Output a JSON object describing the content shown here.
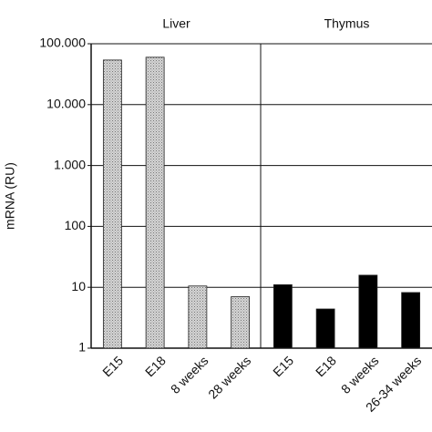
{
  "chart_data": {
    "type": "bar",
    "log_scale": true,
    "grid": true,
    "y_label": "mRNA (RU)",
    "ylim": [
      1,
      100000
    ],
    "yticks": [
      1,
      10,
      100,
      {
        "value": 1000,
        "label": "1.000"
      },
      {
        "value": 10000,
        "label": "10.000"
      },
      {
        "value": 100000,
        "label": "100.000"
      }
    ],
    "panels": [
      {
        "name": "Liver",
        "color": "#d4d4d4",
        "categories": [
          "E15",
          "E18",
          "8 weeks",
          "28 weeks"
        ],
        "values": [
          54000,
          60000,
          10.5,
          7
        ]
      },
      {
        "name": "Thymus",
        "color": "#000000",
        "categories": [
          "E15",
          "E18",
          "8 weeks",
          "26-34 weeks"
        ],
        "values": [
          11,
          4.4,
          15.8,
          8.2
        ]
      }
    ]
  }
}
